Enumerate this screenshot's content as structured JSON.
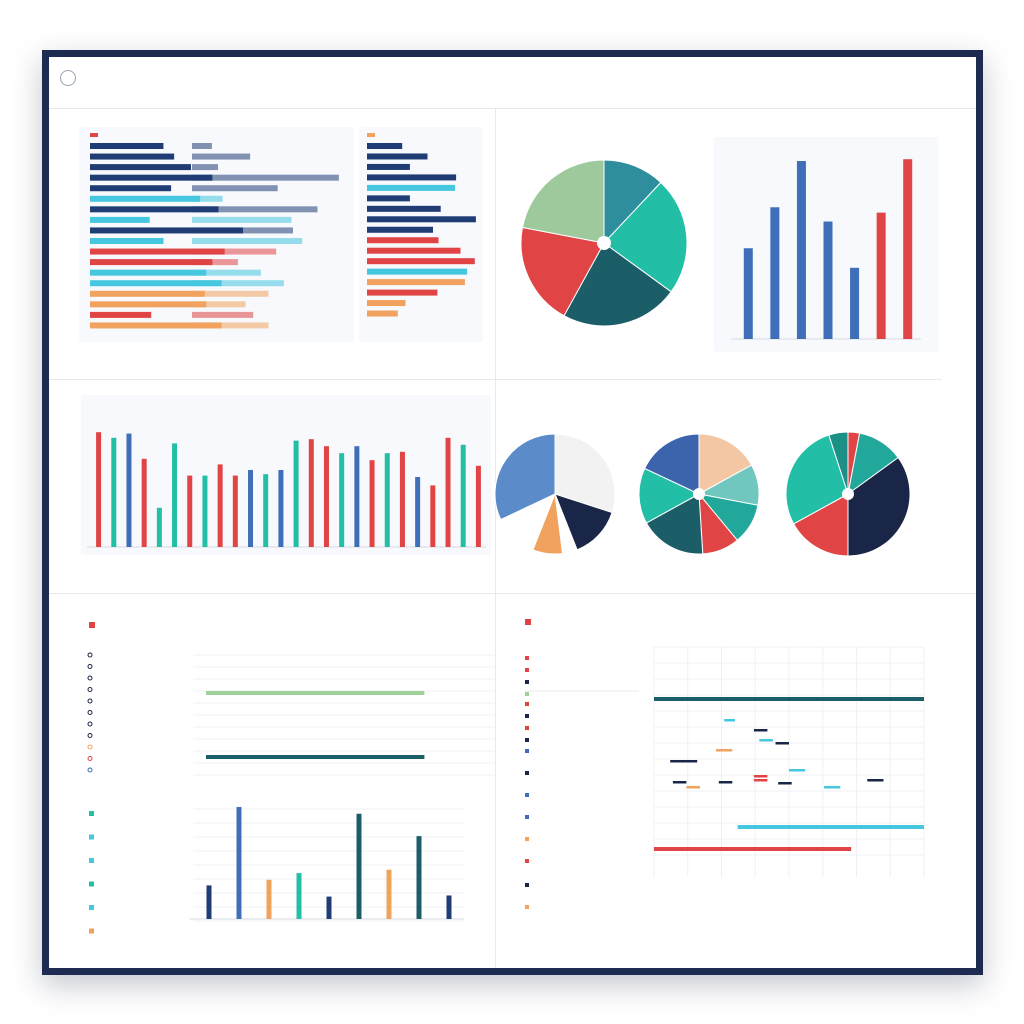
{
  "colors": {
    "navy": "#1f3c74",
    "blue": "#3f6fb8",
    "cyan": "#46c7e0",
    "teal": "#22bfa6",
    "darkteal": "#1c5e68",
    "red": "#e04444",
    "orange": "#f0a25e",
    "green": "#9fd29a",
    "peach": "#f4c7a4",
    "ink": "#1a2647"
  },
  "chart_data": [
    {
      "id": "hbar-a",
      "type": "bar",
      "orientation": "horizontal",
      "series": [
        {
          "values": [
            0.48,
            0.55,
            0.66,
            0.8,
            0.53,
            0.72,
            0.84,
            0.39,
            1.0,
            0.48,
            0.88,
            0.8,
            0.76,
            0.86,
            0.75,
            0.76,
            0.4,
            0.86
          ]
        },
        {
          "values": [
            0.13,
            0.38,
            0.17,
            0.96,
            0.56,
            0.2,
            0.82,
            0.65,
            0.66,
            0.72,
            0.55,
            0.3,
            0.45,
            0.6,
            0.5,
            0.35,
            0.4,
            0.5
          ]
        }
      ],
      "colors": [
        "navy",
        "navy",
        "navy",
        "navy",
        "navy",
        "cyan",
        "navy",
        "cyan",
        "navy",
        "cyan",
        "red",
        "red",
        "cyan",
        "cyan",
        "orange",
        "orange",
        "red",
        "orange"
      ]
    },
    {
      "id": "hbar-b",
      "type": "bar",
      "orientation": "horizontal",
      "values": [
        0.32,
        0.55,
        0.39,
        0.81,
        0.8,
        0.39,
        0.67,
        0.99,
        0.6,
        0.65,
        0.85,
        0.98,
        0.91,
        0.89,
        0.64,
        0.35,
        0.28
      ],
      "colors": [
        "navy",
        "navy",
        "navy",
        "navy",
        "cyan",
        "navy",
        "navy",
        "navy",
        "navy",
        "red",
        "red",
        "red",
        "cyan",
        "orange",
        "red",
        "orange",
        "orange"
      ]
    },
    {
      "id": "pie-1",
      "type": "pie",
      "values": [
        12,
        23,
        23,
        20,
        22
      ],
      "colors": [
        "#2f8e9e",
        "#22bfa6",
        "#1c5e68",
        "#e04444",
        "#9ec99c"
      ]
    },
    {
      "id": "vbar-1",
      "type": "bar",
      "values": [
        0.51,
        0.74,
        1.0,
        0.66,
        0.4,
        0.71,
        1.01
      ],
      "colors": [
        "blue",
        "blue",
        "blue",
        "blue",
        "blue",
        "red",
        "red"
      ]
    },
    {
      "id": "vbar-2",
      "type": "bar",
      "values": [
        0.82,
        0.78,
        0.81,
        0.63,
        0.28,
        0.74,
        0.51,
        0.51,
        0.59,
        0.51,
        0.55,
        0.52,
        0.55,
        0.76,
        0.77,
        0.72,
        0.67,
        0.72,
        0.62,
        0.67,
        0.68,
        0.5,
        0.44,
        0.78,
        0.73,
        0.58
      ],
      "colors": [
        "red",
        "teal",
        "blue",
        "red",
        "teal",
        "teal",
        "red",
        "teal",
        "red",
        "red",
        "blue",
        "teal",
        "blue",
        "teal",
        "red",
        "red",
        "teal",
        "blue",
        "red",
        "teal",
        "red",
        "blue",
        "red",
        "red",
        "teal",
        "red"
      ]
    },
    {
      "id": "pie-2",
      "type": "pie",
      "values": [
        30,
        14,
        4,
        8,
        12,
        32
      ],
      "colors": [
        "#f2f2f2",
        "#1a2647",
        "#ffffff",
        "#f0a25e",
        "#ffffff",
        "#5b8bc8"
      ]
    },
    {
      "id": "pie-3",
      "type": "pie",
      "values": [
        17,
        11,
        11,
        10,
        18,
        15,
        18
      ],
      "colors": [
        "#f4c7a4",
        "#6fc7c0",
        "#22a89a",
        "#e04444",
        "#1c5e68",
        "#22bfa6",
        "#3b64ad"
      ]
    },
    {
      "id": "pie-4",
      "type": "pie",
      "values": [
        3,
        12,
        35,
        17,
        28,
        5
      ],
      "colors": [
        "#e04444",
        "#22a89a",
        "#1a2647",
        "#e04444",
        "#22bfa6",
        "#1c8f86"
      ]
    },
    {
      "id": "gantt-1",
      "type": "bar",
      "orientation": "horizontal",
      "rows": [
        {
          "start": 0.04,
          "end": 0.95,
          "color": "green"
        },
        {
          "start": 0.04,
          "end": 0.95,
          "color": "darkteal"
        }
      ]
    },
    {
      "id": "vbar-3",
      "type": "bar",
      "values": [
        0.3,
        1.0,
        0.35,
        0.41,
        0.2,
        0.94,
        0.44,
        0.74,
        0.21
      ],
      "colors": [
        "navy",
        "blue",
        "orange",
        "teal",
        "navy",
        "darkteal",
        "orange",
        "darkteal",
        "navy"
      ]
    },
    {
      "id": "gantt-2",
      "type": "bar",
      "orientation": "horizontal",
      "segments": [
        {
          "start": 0.0,
          "end": 1.0,
          "row": 0,
          "color": "darkteal"
        },
        {
          "start": 0.26,
          "end": 0.3,
          "row": 1,
          "color": "cyan"
        },
        {
          "start": 0.39,
          "end": 0.44,
          "row": 2,
          "color": "cyan"
        },
        {
          "start": 0.37,
          "end": 0.42,
          "row": 3,
          "color": "ink"
        },
        {
          "start": 0.23,
          "end": 0.29,
          "row": 4,
          "color": "orange"
        },
        {
          "start": 0.45,
          "end": 0.5,
          "row": 5,
          "color": "ink"
        },
        {
          "start": 0.06,
          "end": 0.16,
          "row": 6,
          "color": "ink"
        },
        {
          "start": 0.5,
          "end": 0.56,
          "row": 7,
          "color": "cyan"
        },
        {
          "start": 0.37,
          "end": 0.42,
          "row": 8,
          "color": "red"
        },
        {
          "start": 0.07,
          "end": 0.12,
          "row": 9,
          "color": "ink"
        },
        {
          "start": 0.12,
          "end": 0.17,
          "row": 10,
          "color": "orange"
        },
        {
          "start": 0.24,
          "end": 0.29,
          "row": 11,
          "color": "ink"
        },
        {
          "start": 0.37,
          "end": 0.42,
          "row": 12,
          "color": "red"
        },
        {
          "start": 0.46,
          "end": 0.51,
          "row": 13,
          "color": "ink"
        },
        {
          "start": 0.63,
          "end": 0.69,
          "row": 14,
          "color": "cyan"
        },
        {
          "start": 0.79,
          "end": 0.85,
          "row": 15,
          "color": "ink"
        },
        {
          "start": 0.31,
          "end": 1.0,
          "row": 16,
          "color": "cyan"
        },
        {
          "start": 0.0,
          "end": 0.73,
          "row": 17,
          "color": "red"
        }
      ]
    }
  ]
}
